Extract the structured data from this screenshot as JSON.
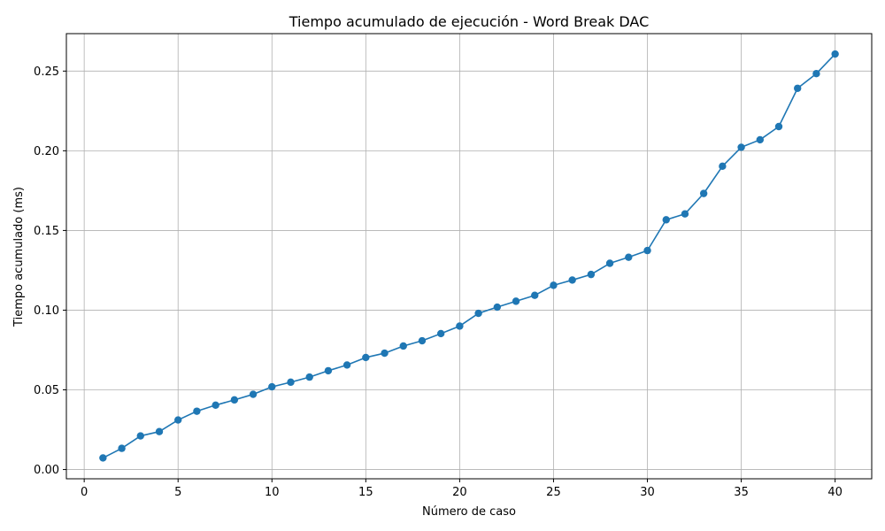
{
  "chart_data": {
    "type": "line",
    "title": "Tiempo acumulado de ejecución - Word Break DAC",
    "xlabel": "Número de caso",
    "ylabel": "Tiempo acumulado (ms)",
    "xlim": [
      -0.95,
      41.95
    ],
    "ylim": [
      -0.0058,
      0.2735
    ],
    "xticks": [
      0,
      5,
      10,
      15,
      20,
      25,
      30,
      35,
      40
    ],
    "xtick_labels": [
      "0",
      "5",
      "10",
      "15",
      "20",
      "25",
      "30",
      "35",
      "40"
    ],
    "yticks": [
      0.0,
      0.05,
      0.1,
      0.15,
      0.2,
      0.25
    ],
    "ytick_labels": [
      "0.00",
      "0.05",
      "0.10",
      "0.15",
      "0.20",
      "0.25"
    ],
    "grid": true,
    "marker": "circle",
    "color": "#1f77b4",
    "x": [
      1,
      2,
      3,
      4,
      5,
      6,
      7,
      8,
      9,
      10,
      11,
      12,
      13,
      14,
      15,
      16,
      17,
      18,
      19,
      20,
      21,
      22,
      23,
      24,
      25,
      26,
      27,
      28,
      29,
      30,
      31,
      32,
      33,
      34,
      35,
      36,
      37,
      38,
      39,
      40
    ],
    "series": [
      {
        "values": [
          0.0073,
          0.0133,
          0.0211,
          0.0238,
          0.0311,
          0.0366,
          0.0404,
          0.0437,
          0.0472,
          0.0519,
          0.0548,
          0.058,
          0.062,
          0.0656,
          0.0703,
          0.073,
          0.0775,
          0.0808,
          0.0853,
          0.09,
          0.098,
          0.1019,
          0.1056,
          0.1093,
          0.1156,
          0.1189,
          0.1224,
          0.1294,
          0.1332,
          0.1374,
          0.1567,
          0.1604,
          0.1732,
          0.1903,
          0.2022,
          0.2069,
          0.2152,
          0.2392,
          0.2484,
          0.2607
        ]
      }
    ]
  }
}
